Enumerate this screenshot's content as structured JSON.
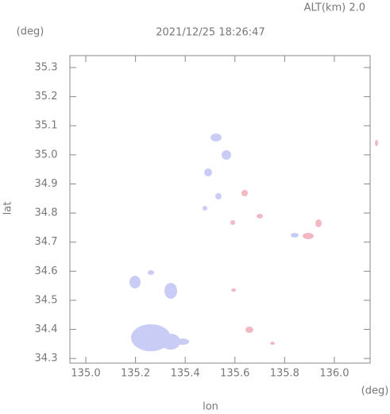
{
  "chart_data": {
    "type": "map",
    "title": "2021/12/25 18:26:47",
    "subtitle": "ALT(km) 2.0",
    "x_label": "lon",
    "y_label": "lat",
    "x_unit": "(deg)",
    "y_unit": "(deg)",
    "xlim": [
      134.936,
      136.144
    ],
    "ylim": [
      34.284,
      35.341
    ],
    "xticks": [
      {
        "value": 135,
        "label": "135.0"
      },
      {
        "value": 135.2,
        "label": "135.2"
      },
      {
        "value": 135.4,
        "label": "135.4"
      },
      {
        "value": 135.6,
        "label": "135.6"
      },
      {
        "value": 135.8,
        "label": "135.8"
      },
      {
        "value": 136,
        "label": "136.0"
      }
    ],
    "yticks": [
      {
        "value": 34.3,
        "label": "34.3"
      },
      {
        "value": 34.4,
        "label": "34.4"
      },
      {
        "value": 34.5,
        "label": "34.5"
      },
      {
        "value": 34.6,
        "label": "34.6"
      },
      {
        "value": 34.7,
        "label": "34.7"
      },
      {
        "value": 34.8,
        "label": "34.8"
      },
      {
        "value": 34.9,
        "label": "34.9"
      },
      {
        "value": 35,
        "label": "35.0"
      },
      {
        "value": 35.1,
        "label": "35.1"
      },
      {
        "value": 35.2,
        "label": "35.2"
      },
      {
        "value": 35.3,
        "label": "35.3"
      }
    ]
  }
}
